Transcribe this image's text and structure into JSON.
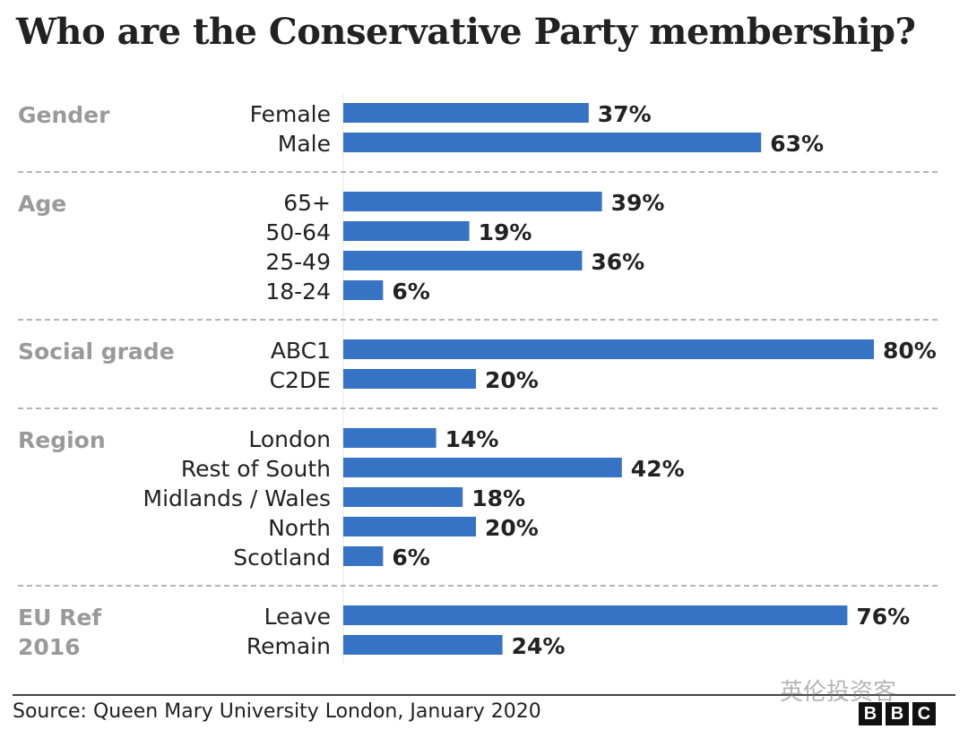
{
  "title": "Who are the Conservative Party membership?",
  "source": "Source: Queen Mary University London, January 2020",
  "logo": [
    "B",
    "B",
    "C"
  ],
  "watermark": "英伦投资客",
  "colors": {
    "bar": "#3673c4",
    "group_label": "#9a9a9a",
    "label": "#222222",
    "separator": "#b5b5b5"
  },
  "chart_data": {
    "type": "bar",
    "orientation": "horizontal",
    "unit": "%",
    "xlim": [
      0,
      80
    ],
    "grid": false,
    "groups": [
      {
        "name": "Gender",
        "categories": [
          "Female",
          "Male"
        ],
        "values": [
          37,
          63
        ]
      },
      {
        "name": "Age",
        "categories": [
          "65+",
          "50-64",
          "25-49",
          "18-24"
        ],
        "values": [
          39,
          19,
          36,
          6
        ]
      },
      {
        "name": "Social grade",
        "categories": [
          "ABC1",
          "C2DE"
        ],
        "values": [
          80,
          20
        ]
      },
      {
        "name": "Region",
        "categories": [
          "London",
          "Rest of South",
          "Midlands / Wales",
          "North",
          "Scotland"
        ],
        "values": [
          14,
          42,
          18,
          20,
          6
        ]
      },
      {
        "name": "EU Ref 2016",
        "categories": [
          "Leave",
          "Remain"
        ],
        "values": [
          76,
          24
        ]
      }
    ]
  }
}
